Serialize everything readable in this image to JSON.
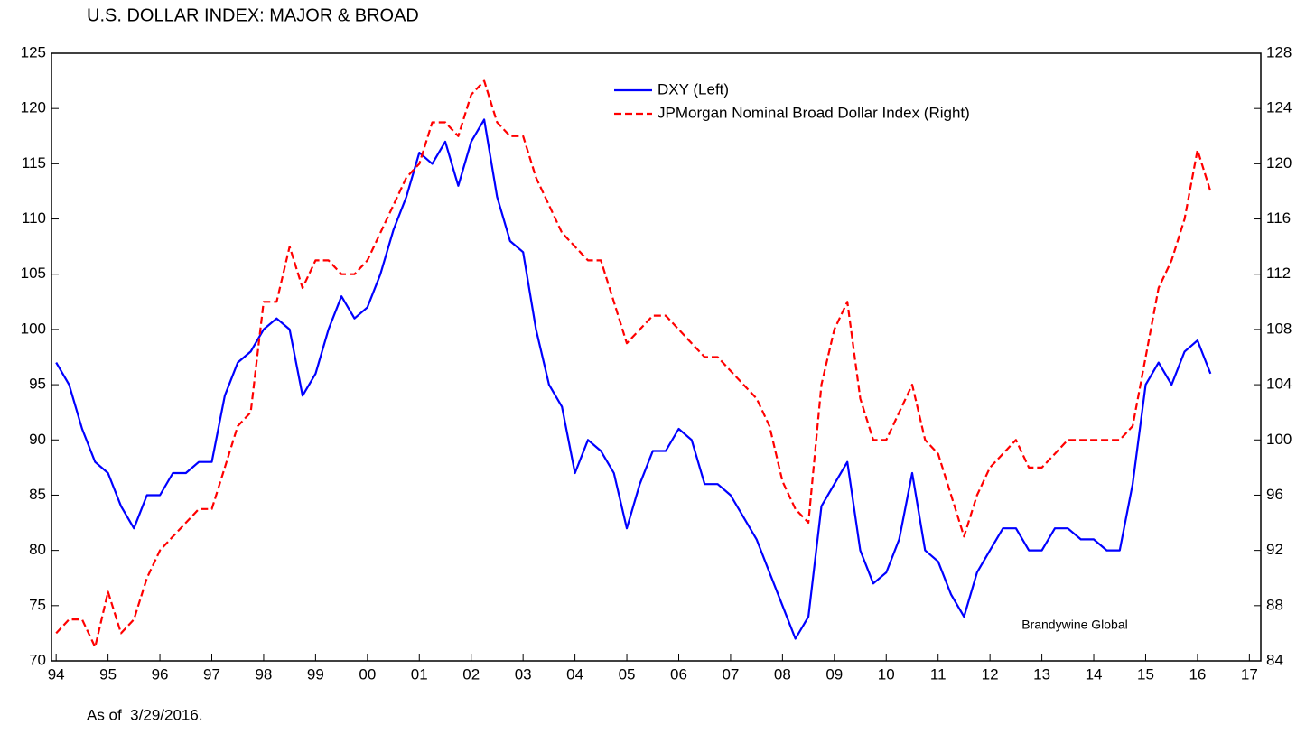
{
  "chart_data": {
    "type": "line",
    "title": "U.S. DOLLAR INDEX: MAJOR & BROAD",
    "footnote": "As of  3/29/2016.",
    "annotation": "Brandywine Global",
    "x": [
      1994,
      1994.25,
      1994.5,
      1994.75,
      1995,
      1995.25,
      1995.5,
      1995.75,
      1996,
      1996.25,
      1996.5,
      1996.75,
      1997,
      1997.25,
      1997.5,
      1997.75,
      1998,
      1998.25,
      1998.5,
      1998.75,
      1999,
      1999.25,
      1999.5,
      1999.75,
      2000,
      2000.25,
      2000.5,
      2000.75,
      2001,
      2001.25,
      2001.5,
      2001.75,
      2002,
      2002.25,
      2002.5,
      2002.75,
      2003,
      2003.25,
      2003.5,
      2003.75,
      2004,
      2004.25,
      2004.5,
      2004.75,
      2005,
      2005.25,
      2005.5,
      2005.75,
      2006,
      2006.25,
      2006.5,
      2006.75,
      2007,
      2007.25,
      2007.5,
      2007.75,
      2008,
      2008.25,
      2008.5,
      2008.75,
      2009,
      2009.25,
      2009.5,
      2009.75,
      2010,
      2010.25,
      2010.5,
      2010.75,
      2011,
      2011.25,
      2011.5,
      2011.75,
      2012,
      2012.25,
      2012.5,
      2012.75,
      2013,
      2013.25,
      2013.5,
      2013.75,
      2014,
      2014.25,
      2014.5,
      2014.75,
      2015,
      2015.25,
      2015.5,
      2015.75,
      2016,
      2016.25
    ],
    "series": [
      {
        "name": "DXY (Left)",
        "color": "#0000ff",
        "dash": false,
        "axis": "y",
        "values": [
          97,
          95,
          91,
          88,
          87,
          84,
          82,
          85,
          85,
          87,
          87,
          88,
          88,
          94,
          97,
          98,
          100,
          101,
          100,
          94,
          96,
          100,
          103,
          101,
          102,
          105,
          109,
          112,
          116,
          115,
          117,
          113,
          117,
          119,
          112,
          108,
          107,
          100,
          95,
          93,
          87,
          90,
          89,
          87,
          82,
          86,
          89,
          89,
          91,
          90,
          86,
          86,
          85,
          83,
          81,
          78,
          75,
          72,
          74,
          84,
          86,
          88,
          80,
          77,
          78,
          81,
          87,
          80,
          79,
          76,
          74,
          78,
          80,
          82,
          82,
          80,
          80,
          82,
          82,
          81,
          81,
          80,
          80,
          86,
          95,
          97,
          95,
          98,
          99,
          96
        ]
      },
      {
        "name": "JPMorgan Nominal Broad Dollar Index (Right)",
        "color": "#ff0000",
        "dash": true,
        "axis": "y2",
        "values": [
          86,
          87,
          87,
          85,
          89,
          86,
          87,
          90,
          92,
          93,
          94,
          95,
          95,
          98,
          101,
          102,
          110,
          110,
          114,
          111,
          113,
          113,
          112,
          112,
          113,
          115,
          117,
          119,
          120,
          123,
          123,
          122,
          125,
          126,
          123,
          122,
          122,
          119,
          117,
          115,
          114,
          113,
          113,
          110,
          107,
          108,
          109,
          109,
          108,
          107,
          106,
          106,
          105,
          104,
          103,
          101,
          97,
          95,
          94,
          104,
          108,
          110,
          103,
          100,
          100,
          102,
          104,
          100,
          99,
          96,
          93,
          96,
          98,
          99,
          100,
          98,
          98,
          99,
          100,
          100,
          100,
          100,
          100,
          101,
          106,
          111,
          113,
          116,
          121,
          118
        ]
      }
    ],
    "xlim": [
      1993.91,
      2017.22
    ],
    "xticks": [
      {
        "value": 1994,
        "label": "94"
      },
      {
        "value": 1995,
        "label": "95"
      },
      {
        "value": 1996,
        "label": "96"
      },
      {
        "value": 1997,
        "label": "97"
      },
      {
        "value": 1998,
        "label": "98"
      },
      {
        "value": 1999,
        "label": "99"
      },
      {
        "value": 2000,
        "label": "00"
      },
      {
        "value": 2001,
        "label": "01"
      },
      {
        "value": 2002,
        "label": "02"
      },
      {
        "value": 2003,
        "label": "03"
      },
      {
        "value": 2004,
        "label": "04"
      },
      {
        "value": 2005,
        "label": "05"
      },
      {
        "value": 2006,
        "label": "06"
      },
      {
        "value": 2007,
        "label": "07"
      },
      {
        "value": 2008,
        "label": "08"
      },
      {
        "value": 2009,
        "label": "09"
      },
      {
        "value": 2010,
        "label": "10"
      },
      {
        "value": 2011,
        "label": "11"
      },
      {
        "value": 2012,
        "label": "12"
      },
      {
        "value": 2013,
        "label": "13"
      },
      {
        "value": 2014,
        "label": "14"
      },
      {
        "value": 2015,
        "label": "15"
      },
      {
        "value": 2016,
        "label": "16"
      },
      {
        "value": 2017,
        "label": "17"
      }
    ],
    "ylim": [
      70,
      125
    ],
    "yticks": [
      70,
      75,
      80,
      85,
      90,
      95,
      100,
      105,
      110,
      115,
      120,
      125
    ],
    "y2lim": [
      84,
      128
    ],
    "y2ticks": [
      84,
      88,
      92,
      96,
      100,
      104,
      108,
      112,
      116,
      120,
      124,
      128
    ],
    "grid": false
  }
}
